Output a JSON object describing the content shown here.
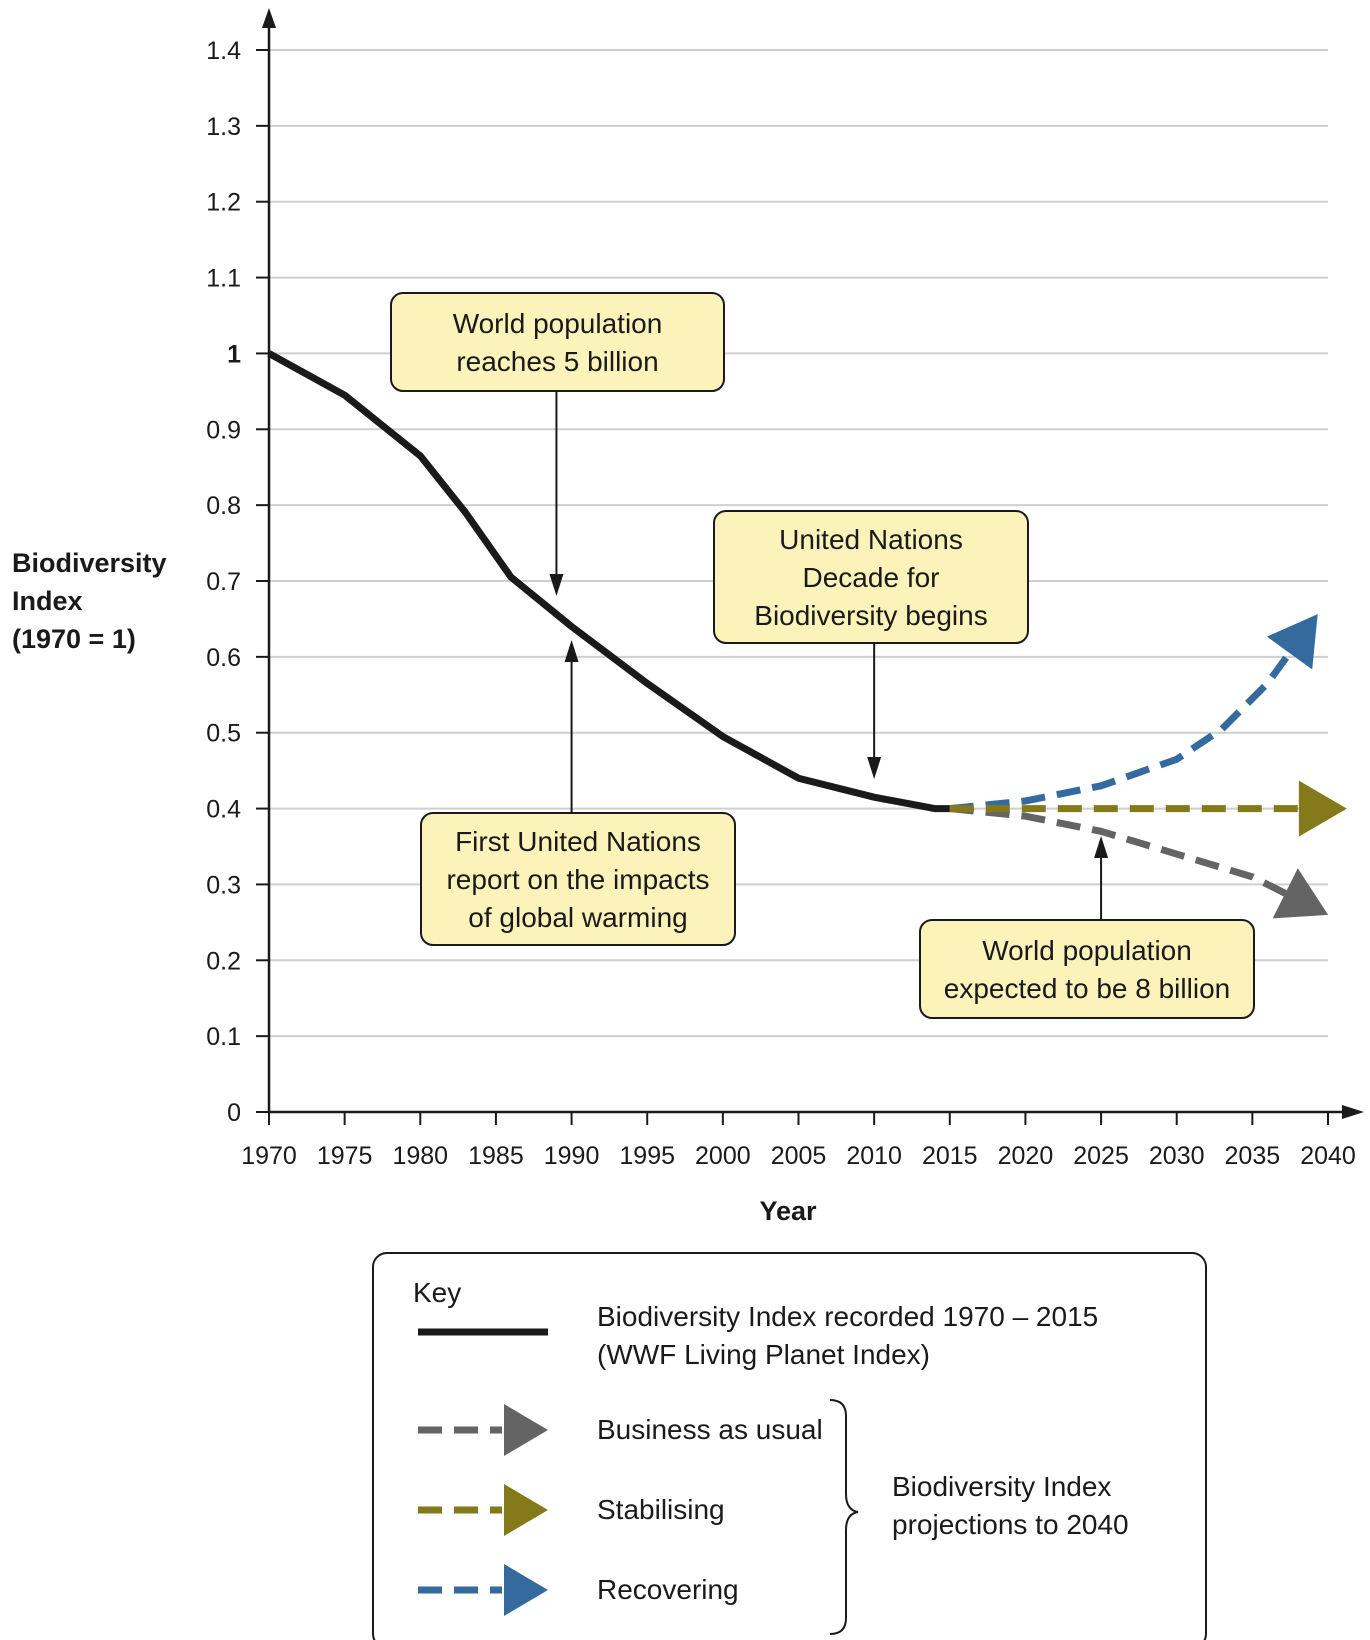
{
  "chart_data": {
    "type": "line",
    "xlabel": "Year",
    "ylabel": [
      "Biodiversity",
      "Index",
      "(1970 = 1)"
    ],
    "xlim": [
      1970,
      2040
    ],
    "ylim": [
      0,
      1.4
    ],
    "x_ticks": [
      1970,
      1975,
      1980,
      1985,
      1990,
      1995,
      2000,
      2005,
      2010,
      2015,
      2020,
      2025,
      2030,
      2035,
      2040
    ],
    "y_ticks": [
      {
        "value": 0,
        "label": "0"
      },
      {
        "value": 0.1,
        "label": "0.1"
      },
      {
        "value": 0.2,
        "label": "0.2"
      },
      {
        "value": 0.3,
        "label": "0.3"
      },
      {
        "value": 0.4,
        "label": "0.4"
      },
      {
        "value": 0.5,
        "label": "0.5"
      },
      {
        "value": 0.6,
        "label": "0.6"
      },
      {
        "value": 0.7,
        "label": "0.7"
      },
      {
        "value": 0.8,
        "label": "0.8"
      },
      {
        "value": 0.9,
        "label": "0.9"
      },
      {
        "value": 1,
        "label": "1",
        "bold": true
      },
      {
        "value": 1.1,
        "label": "1.1"
      },
      {
        "value": 1.2,
        "label": "1.2"
      },
      {
        "value": 1.3,
        "label": "1.3"
      },
      {
        "value": 1.4,
        "label": "1.4"
      }
    ],
    "grid": true,
    "series": [
      {
        "key": "recorded",
        "color": "#1a1a1a",
        "style": "solid",
        "points": [
          [
            1970,
            1.0
          ],
          [
            1975,
            0.945
          ],
          [
            1980,
            0.865
          ],
          [
            1983,
            0.79
          ],
          [
            1986,
            0.705
          ],
          [
            1990,
            0.64
          ],
          [
            1995,
            0.565
          ],
          [
            2000,
            0.495
          ],
          [
            2005,
            0.44
          ],
          [
            2010,
            0.415
          ],
          [
            2014,
            0.4
          ],
          [
            2015,
            0.4
          ]
        ]
      },
      {
        "key": "business_as_usual",
        "color": "#646464",
        "style": "dashed",
        "points": [
          [
            2015,
            0.4
          ],
          [
            2020,
            0.39
          ],
          [
            2025,
            0.37
          ],
          [
            2030,
            0.34
          ],
          [
            2035,
            0.31
          ],
          [
            2038,
            0.28
          ]
        ]
      },
      {
        "key": "stabilising",
        "color": "#857a1a",
        "style": "dashed",
        "points": [
          [
            2015,
            0.4
          ],
          [
            2020,
            0.4
          ],
          [
            2025,
            0.4
          ],
          [
            2030,
            0.4
          ],
          [
            2035,
            0.4
          ],
          [
            2039,
            0.4
          ]
        ]
      },
      {
        "key": "recovering",
        "color": "#356a9e",
        "style": "dashed",
        "points": [
          [
            2015,
            0.4
          ],
          [
            2020,
            0.41
          ],
          [
            2025,
            0.43
          ],
          [
            2030,
            0.465
          ],
          [
            2033,
            0.505
          ],
          [
            2036,
            0.565
          ],
          [
            2038,
            0.62
          ]
        ]
      }
    ],
    "annotations": [
      {
        "key": "pop5",
        "lines": [
          "World population",
          "reaches 5 billion"
        ],
        "arrow_year": 1989,
        "arrow_direction": "down"
      },
      {
        "key": "ipcc",
        "lines": [
          "First United Nations",
          "report on the impacts",
          "of global warming"
        ],
        "arrow_year": 1990,
        "arrow_direction": "up"
      },
      {
        "key": "undecade",
        "lines": [
          "United Nations",
          "Decade for",
          "Biodiversity begins"
        ],
        "arrow_year": 2010,
        "arrow_direction": "down"
      },
      {
        "key": "pop8",
        "lines": [
          "World population",
          "expected to be 8 billion"
        ],
        "arrow_year": 2025,
        "arrow_direction": "up"
      }
    ],
    "note_fill": "#fbf3b9",
    "legend": {
      "title": "Key",
      "recorded_lines": [
        "Biodiversity Index recorded 1970 – 2015",
        "(WWF Living Planet Index)"
      ],
      "projections": [
        {
          "label": "Business as usual",
          "color": "#646464"
        },
        {
          "label": "Stabilising",
          "color": "#857a1a"
        },
        {
          "label": "Recovering",
          "color": "#356a9e"
        }
      ],
      "group_lines": [
        "Biodiversity Index",
        "projections to 2040"
      ]
    }
  }
}
